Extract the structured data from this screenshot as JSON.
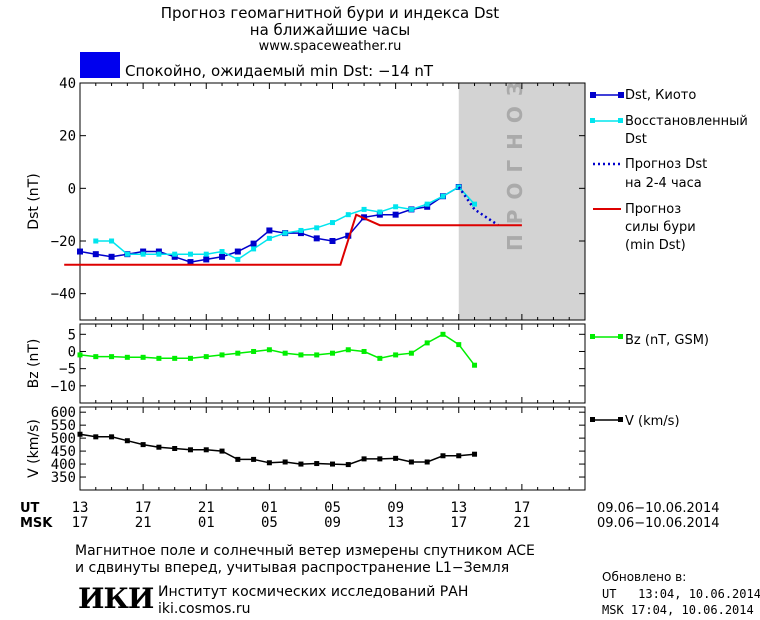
{
  "header": {
    "title_line1": "Прогноз геомагнитной бури и индекса Dst",
    "title_line2": "на ближайшие часы",
    "url": "www.spaceweather.ru",
    "status": "Спокойно, ожидаемый min Dst: −14 nT",
    "status_color": "#0000ee"
  },
  "colors": {
    "dst": "#0000cc",
    "restored": "#00e5ee",
    "forecast_dst": "#0000cc",
    "storm": "#dd0000",
    "bz": "#00ee00",
    "v": "#000000",
    "forecast_band": "#d3d3d3"
  },
  "chart_data": [
    {
      "type": "line",
      "panel": "dst",
      "ylabel": "Dst (nT)",
      "ylim": [
        -50,
        40
      ],
      "yticks": [
        40,
        20,
        0,
        -20,
        -40
      ],
      "x_unit": "hours from 13 UT, 09.06.2014",
      "series": [
        {
          "name": "Dst, Киото",
          "x": [
            0,
            1,
            2,
            3,
            4,
            5,
            6,
            7,
            8,
            9,
            10,
            11,
            12,
            13,
            14,
            15,
            16,
            17,
            18,
            19,
            20,
            21,
            22,
            23,
            24
          ],
          "values": [
            -24,
            -25,
            -26,
            -25,
            -24,
            -24,
            -26,
            -28,
            -27,
            -26,
            -24,
            -21,
            -16,
            -17,
            -17,
            -19,
            -20,
            -18,
            -11,
            -10,
            -10,
            -8,
            -7,
            -3,
            0.5
          ]
        },
        {
          "name": "Восстановленный Dst",
          "x": [
            1,
            2,
            3,
            4,
            5,
            6,
            7,
            8,
            9,
            10,
            11,
            12,
            13,
            14,
            15,
            16,
            17,
            18,
            19,
            20,
            21,
            22,
            23,
            24,
            25
          ],
          "values": [
            -20,
            -20,
            -25,
            -25,
            -25,
            -25,
            -25,
            -25,
            -24,
            -27,
            -23,
            -19,
            -17,
            -16,
            -15,
            -13,
            -10,
            -8,
            -9,
            -7,
            -8,
            -6,
            -3,
            0.5,
            -6
          ]
        },
        {
          "name": "Прогноз Dst на 2-4 часа",
          "x": [
            24,
            25,
            26.5
          ],
          "values": [
            0.5,
            -8,
            -14
          ],
          "style": "dotted"
        },
        {
          "name": "Прогноз силы бури (min Dst)",
          "x": [
            -1,
            16.5,
            17.5,
            19,
            28
          ],
          "values": [
            -29,
            -29,
            -10,
            -14,
            -14
          ],
          "style": "step"
        }
      ],
      "annotations": {
        "forecast_label": "ПРОГНОЗ",
        "forecast_start_x": 24
      }
    },
    {
      "type": "line",
      "panel": "bz",
      "ylabel": "Bz (nT)",
      "ylim": [
        -15,
        8
      ],
      "yticks": [
        5,
        0,
        -5,
        -10
      ],
      "series": [
        {
          "name": "Bz (nT, GSM)",
          "x": [
            0,
            1,
            2,
            3,
            4,
            5,
            6,
            7,
            8,
            9,
            10,
            11,
            12,
            13,
            14,
            15,
            16,
            17,
            18,
            19,
            20,
            21,
            22,
            23,
            24,
            25
          ],
          "values": [
            -1,
            -1.5,
            -1.5,
            -1.7,
            -1.7,
            -2,
            -2,
            -2,
            -1.5,
            -1,
            -0.5,
            0,
            0.5,
            -0.5,
            -1,
            -1,
            -0.5,
            0.5,
            0,
            -2,
            -1,
            -0.5,
            2.5,
            5,
            2,
            -4
          ]
        }
      ]
    },
    {
      "type": "line",
      "panel": "v",
      "ylabel": "V (km/s)",
      "ylim": [
        300,
        620
      ],
      "yticks": [
        600,
        550,
        500,
        450,
        400,
        350
      ],
      "series": [
        {
          "name": "V (km/s)",
          "x": [
            0,
            1,
            2,
            3,
            4,
            5,
            6,
            7,
            8,
            9,
            10,
            11,
            12,
            13,
            14,
            15,
            16,
            17,
            18,
            19,
            20,
            21,
            22,
            23,
            24,
            25
          ],
          "values": [
            515,
            505,
            505,
            490,
            475,
            465,
            460,
            455,
            455,
            450,
            418,
            418,
            405,
            408,
            400,
            402,
            400,
            398,
            420,
            420,
            422,
            408,
            408,
            432,
            432,
            438
          ]
        }
      ]
    }
  ],
  "axes": {
    "ut_label": "UT",
    "msk_label": "MSK",
    "ut_ticks": [
      "13",
      "17",
      "21",
      "01",
      "05",
      "09",
      "13",
      "17"
    ],
    "msk_ticks": [
      "17",
      "21",
      "01",
      "05",
      "09",
      "13",
      "17",
      "21"
    ],
    "date_range_ut": "09.06−10.06.2014",
    "date_range_msk": "09.06−10.06.2014"
  },
  "legend": {
    "dst_kyoto": "Dst, Киото",
    "restored_1": "Восстановленный",
    "restored_2": "Dst",
    "forecast_1": "Прогноз Dst",
    "forecast_2": "на 2-4 часа",
    "storm_1": "Прогноз",
    "storm_2": "силы бури",
    "storm_3": "(min Dst)",
    "bz": "Bz (nT, GSM)",
    "v": "V (km/s)"
  },
  "footer": {
    "note_line1": "Магнитное поле и солнечный ветер измерены спутником ACE",
    "note_line2": "и сдвинуты вперед, учитывая распространение L1−Земля",
    "logo_text": "ИКИ",
    "institute": "Институт космических исследований РАН",
    "institute_url": "iki.cosmos.ru",
    "updated_label": "Обновлено в:",
    "updated_ut": "UT   13:04, 10.06.2014",
    "updated_msk": "MSK 17:04, 10.06.2014"
  }
}
